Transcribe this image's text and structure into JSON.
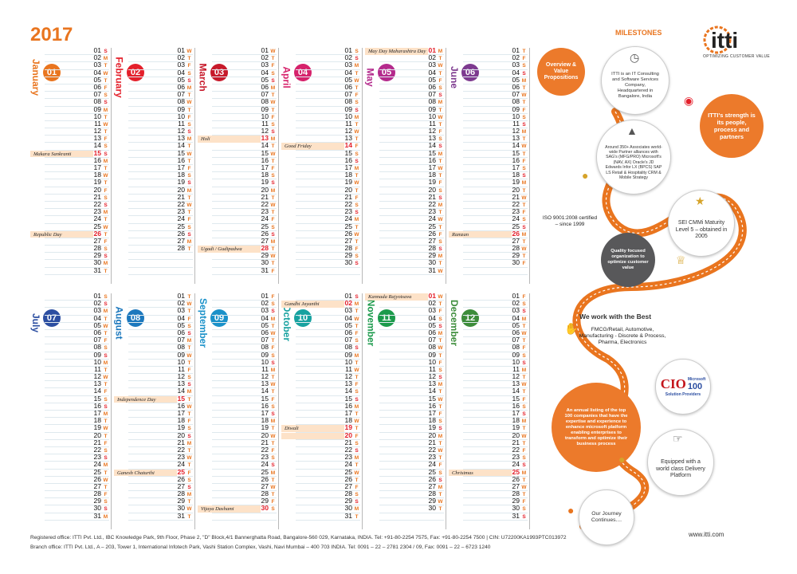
{
  "year": "2017",
  "months": [
    {
      "name": "January",
      "num": "01",
      "color": "#e9751f",
      "days": 31,
      "start": 0,
      "holidays": {
        "15": "Makara Sankranti",
        "26": "Republic Day"
      }
    },
    {
      "name": "February",
      "num": "02",
      "color": "#e4202b",
      "days": 28,
      "start": 3,
      "holidays": {}
    },
    {
      "name": "March",
      "num": "03",
      "color": "#c71a2b",
      "days": 31,
      "start": 3,
      "holidays": {
        "13": "Holi",
        "28": "Ugadi / Gudipadwa"
      }
    },
    {
      "name": "April",
      "num": "04",
      "color": "#d6226b",
      "days": 30,
      "start": 6,
      "holidays": {
        "14": "Good Friday"
      }
    },
    {
      "name": "May",
      "num": "05",
      "color": "#b42a8c",
      "days": 31,
      "start": 1,
      "holidays": {
        "01": "May Day Maharashtra Day"
      }
    },
    {
      "name": "June",
      "num": "06",
      "color": "#7d3a8f",
      "days": 30,
      "start": 4,
      "holidays": {
        "26": "Ramzan"
      }
    },
    {
      "name": "July",
      "num": "07",
      "color": "#2c4ea1",
      "days": 31,
      "start": 6,
      "holidays": {}
    },
    {
      "name": "August",
      "num": "08",
      "color": "#1c78bd",
      "days": 31,
      "start": 2,
      "holidays": {
        "15": "Independence Day",
        "25": "Ganesh Chaturthi"
      }
    },
    {
      "name": "September",
      "num": "09",
      "color": "#1a91c9",
      "days": 30,
      "start": 5,
      "holidays": {
        "30": "Vijaya Dashami"
      }
    },
    {
      "name": "October",
      "num": "10",
      "color": "#17a2a0",
      "days": 31,
      "start": 0,
      "holidays": {
        "02": "Gandhi Jayanthi",
        "19": "Diwali",
        "20": ""
      }
    },
    {
      "name": "November",
      "num": "11",
      "color": "#1b9a4b",
      "days": 30,
      "start": 3,
      "holidays": {
        "01": "Kannada Rajyotsava"
      }
    },
    {
      "name": "December",
      "num": "12",
      "color": "#3c8c3a",
      "days": 31,
      "start": 5,
      "holidays": {
        "25": "Christmas"
      }
    }
  ],
  "weekday_letters": [
    "S",
    "M",
    "T",
    "W",
    "T",
    "F",
    "S"
  ],
  "footer": {
    "line1": "Registered office: ITTI Pvt. Ltd., IBC Knowledge Park, 9th Floor, Phase 2, \"D\" Block,4/1 Bannerghatta Road, Bangalore-560 029, Karnataka, INDIA. Tel: +91-80-2254 7575, Fax: +91-80-2254 7500 | CIN: U72200KA1993PTC013972",
    "line2": "Branch office: ITTI Pvt. Ltd., A – 203, Tower 1, International Infotech Park, Vashi Station Complex, Vashi, Navi Mumbai – 400 703 INDIA. Tel: 0091 – 22 – 2781 2304 / 09, Fax: 0091 – 22 – 6723 1240"
  },
  "panel": {
    "title": "MILESTONES",
    "logo": "itti",
    "logo_sub": "OPTIMIZING CUSTOMER VALUE",
    "overview": "Overview & Value Propositions",
    "about": "ITTI is an IT Consulting and Software Services Company, Headquartered in Bangalore, India",
    "strength": "ITTI's strength is its people, process and partners",
    "associates": "Around 350+ Associates world-wide Partner alliances with SAG's (MFG/PRO) Microsoft's (NAV, AX) Oracle's JD Edwards Infor LX (BPCS) SAP LS Retail & Hospitality CRM & Mobile Strategy",
    "iso": "ISO 9001:2008 certified – since 1999",
    "sei": "SEI CMMi Maturity Level 5 – obtained in 2005",
    "quality": "Quality focused organization to optimize customer value",
    "best_title": "We work with the Best",
    "sectors": "FMCG/Retail, Automotive, Manufacturing - Discrete & Process, Pharma, Electronics",
    "cio_big": "CIO",
    "cio_small1": "Microsoft",
    "cio_100": "100",
    "cio_small2": "Solution Providers",
    "annual": "An annual listing of the top 100 companies that have the expertise and experience to enhance microsoft platform enabling enterprises to transform and optimize their business process",
    "delivery": "Equipped with a world class Delivery Platform",
    "journey": "Our Journey Continues....",
    "web": "www.itti.com"
  }
}
